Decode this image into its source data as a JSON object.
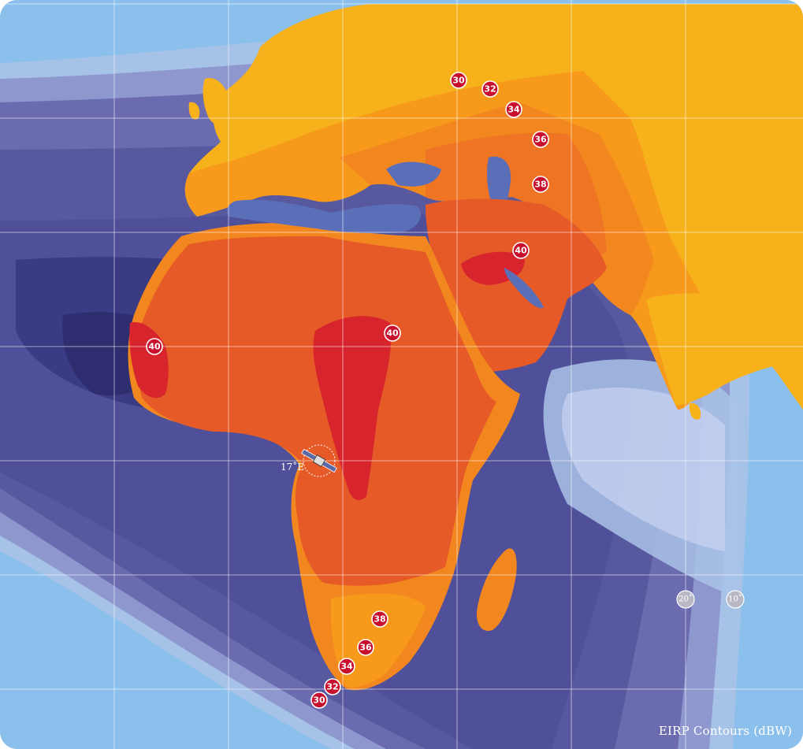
{
  "map": {
    "legend_title": "EIRP Contours (dBW)",
    "satellite": {
      "label": "17˚E",
      "icon": "satellite-icon"
    },
    "elevation_markers": [
      "20˚",
      "10˚"
    ],
    "contour_labels": [
      {
        "value": "30",
        "region": "russia-north"
      },
      {
        "value": "32",
        "region": "russia-north"
      },
      {
        "value": "34",
        "region": "russia-central"
      },
      {
        "value": "36",
        "region": "caspian-north"
      },
      {
        "value": "38",
        "region": "caucasus"
      },
      {
        "value": "40",
        "region": "middle-east"
      },
      {
        "value": "40",
        "region": "west-africa"
      },
      {
        "value": "40",
        "region": "central-africa"
      },
      {
        "value": "38",
        "region": "southern-africa"
      },
      {
        "value": "36",
        "region": "southern-africa"
      },
      {
        "value": "34",
        "region": "southern-africa"
      },
      {
        "value": "32",
        "region": "cape"
      },
      {
        "value": "30",
        "region": "cape"
      }
    ],
    "colors": {
      "ocean": "#8cc0ec",
      "contour_outer": "#a9c2e6",
      "contour_blue_1": "#8f97cf",
      "contour_blue_2": "#6b6bb0",
      "contour_blue_3": "#4f4f9a",
      "contour_blue_4": "#3b3b84",
      "contour_deep": "#2d2d6f",
      "land_30": "#f6b11b",
      "land_32": "#f79a1c",
      "land_34": "#f3871f",
      "land_36": "#ef7424",
      "land_38": "#e55a27",
      "land_40": "#d8242c",
      "badge": "#c8102e",
      "grid": "#ffffff"
    }
  }
}
